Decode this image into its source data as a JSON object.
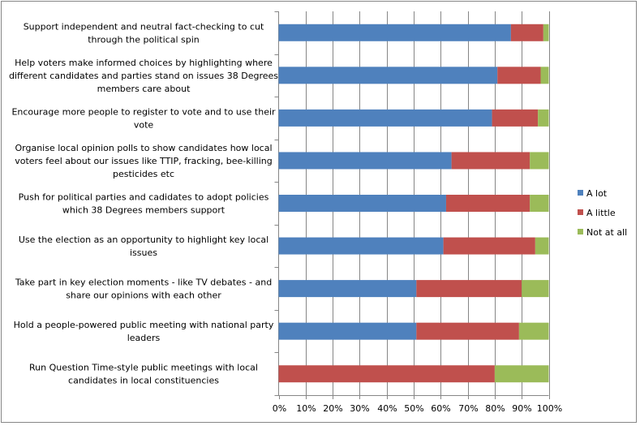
{
  "chart_data": {
    "type": "bar",
    "orientation": "horizontal",
    "stacked": "percent",
    "title": "",
    "xlabel": "",
    "ylabel": "",
    "xlim": [
      0,
      100
    ],
    "x_ticks": [
      "0%",
      "10%",
      "20%",
      "30%",
      "40%",
      "50%",
      "60%",
      "70%",
      "80%",
      "90%",
      "100%"
    ],
    "grid": true,
    "legend_position": "right",
    "categories": [
      [
        "Support independent and neutral fact-checking to cut",
        "through the political spin"
      ],
      [
        "Help voters make informed choices by highlighting where",
        "different candidates and parties stand on issues 38 Degrees",
        "members care about"
      ],
      [
        "Encourage more people to register to vote and to use their",
        "vote"
      ],
      [
        "Organise local opinion polls to show candidates how local",
        "voters feel about our issues like TTIP, fracking, bee-killing",
        "pesticides etc"
      ],
      [
        "Push for political parties and cadidates to adopt policies",
        "which 38 Degrees members support"
      ],
      [
        "Use the election as an opportunity to highlight key local",
        "issues"
      ],
      [
        "Take part in key election moments - like TV debates - and",
        "share our opinions with each other"
      ],
      [
        "Hold a people-powered public meeting with national party",
        "leaders"
      ],
      [
        "Run Question Time-style public meetings with local",
        "candidates in local constituencies"
      ]
    ],
    "series": [
      {
        "name": "A lot",
        "color": "#4f81bd",
        "values": [
          86,
          81,
          79,
          64,
          62,
          61,
          51,
          51,
          0
        ]
      },
      {
        "name": "A little",
        "color": "#c0504d",
        "values": [
          12,
          16,
          17,
          29,
          31,
          34,
          39,
          38,
          80
        ]
      },
      {
        "name": "Not at all",
        "color": "#9bbb59",
        "values": [
          2,
          3,
          4,
          7,
          7,
          5,
          10,
          11,
          20
        ]
      }
    ]
  }
}
